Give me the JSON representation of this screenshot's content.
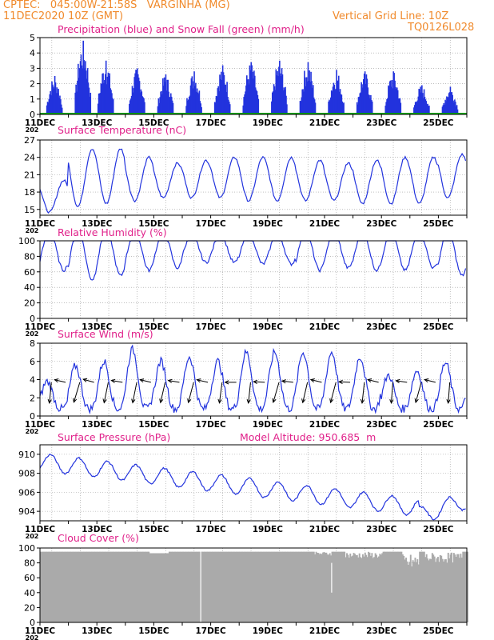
{
  "header": {
    "line1": "CPTEC:   045:00W-21:58S   VARGINHA (MG)",
    "line2": "11DEC2020 10Z (GMT)",
    "grid_note": "Vertical Grid Line: 10Z",
    "code": "TQ0126L028"
  },
  "colors": {
    "header": "#f08a2c",
    "title": "#e0218a",
    "line": "#2233dd",
    "bar": "#2233dd",
    "snow": "#00aa00",
    "cloud": "#aaaaaa"
  },
  "x_tick_labels": [
    "11DEC",
    "13DEC",
    "15DEC",
    "17DEC",
    "19DEC",
    "21DEC",
    "23DEC",
    "25DEC"
  ],
  "year_stub": "202",
  "chart_data": [
    {
      "id": "precip",
      "type": "bar",
      "title": "Precipitation (blue) and Snow Fall (green) (mm/h)",
      "ylim": [
        0,
        5
      ],
      "yticks": [
        "0",
        "1",
        "2",
        "3",
        "4",
        "5"
      ],
      "x_start_day": 11,
      "x_end_day": 26,
      "bursts": [
        {
          "day": 11.5,
          "peak": 2.5
        },
        {
          "day": 12.5,
          "peak": 4.8
        },
        {
          "day": 13.3,
          "peak": 3.5
        },
        {
          "day": 14.4,
          "peak": 3.0
        },
        {
          "day": 15.4,
          "peak": 2.6
        },
        {
          "day": 16.4,
          "peak": 2.8
        },
        {
          "day": 17.4,
          "peak": 3.2
        },
        {
          "day": 18.4,
          "peak": 3.4
        },
        {
          "day": 19.4,
          "peak": 3.5
        },
        {
          "day": 20.4,
          "peak": 3.4
        },
        {
          "day": 21.4,
          "peak": 2.9
        },
        {
          "day": 22.4,
          "peak": 2.8
        },
        {
          "day": 23.4,
          "peak": 2.8
        },
        {
          "day": 24.4,
          "peak": 1.9
        },
        {
          "day": 25.4,
          "peak": 1.8
        }
      ]
    },
    {
      "id": "temp",
      "type": "line",
      "title": "Surface Temperature (nC)",
      "ylim": [
        14,
        27
      ],
      "yticks": [
        "15",
        "18",
        "21",
        "24",
        "27"
      ],
      "series": [
        {
          "daily_max": [
            20,
            25.5,
            25.5,
            24,
            23,
            23.5,
            24,
            24,
            24,
            23.5,
            23,
            23.5,
            24,
            24,
            24.5
          ],
          "daily_min": [
            14.5,
            15.5,
            16,
            16.5,
            17,
            17,
            17,
            16.5,
            16.5,
            16.5,
            16.5,
            16,
            16,
            16,
            17
          ]
        }
      ]
    },
    {
      "id": "rh",
      "type": "line",
      "title": "Relative Humidity (%)",
      "ylim": [
        0,
        100
      ],
      "yticks": [
        "0",
        "20",
        "40",
        "60",
        "80",
        "100"
      ],
      "series": [
        {
          "daily_min": [
            62,
            50,
            55,
            62,
            65,
            72,
            72,
            70,
            70,
            62,
            65,
            62,
            62,
            65,
            55
          ]
        }
      ]
    },
    {
      "id": "wind",
      "type": "line",
      "title": "Surface Wind (m/s)",
      "ylim": [
        0,
        8
      ],
      "yticks": [
        "0",
        "2",
        "4",
        "6",
        "8"
      ],
      "series": [
        {
          "daily_max": [
            3.8,
            5.5,
            6.0,
            7.3,
            6.0,
            6.5,
            6.0,
            7.0,
            7.0,
            7.0,
            7.0,
            6.5,
            4.5,
            5.0,
            5.8
          ]
        }
      ]
    },
    {
      "id": "pressure",
      "type": "line",
      "title": "Surface Pressure (hPa)",
      "subtitle": "Model Altitude: 950.685  m",
      "ylim": [
        903,
        911
      ],
      "yticks": [
        "904",
        "906",
        "908",
        "910"
      ]
    },
    {
      "id": "cloud",
      "type": "area",
      "title": "Cloud Cover (%)",
      "ylim": [
        0,
        100
      ],
      "yticks": [
        "0",
        "20",
        "40",
        "60",
        "80",
        "100"
      ]
    }
  ]
}
